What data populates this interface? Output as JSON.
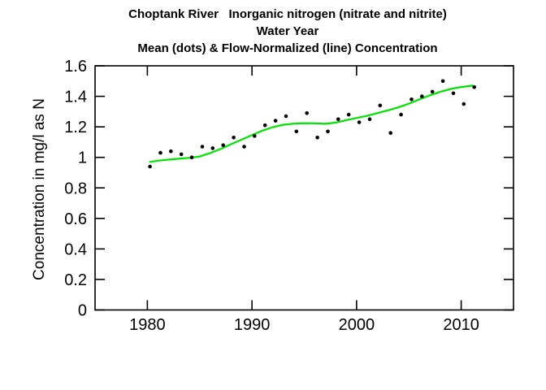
{
  "window": {
    "background": "#ffffff"
  },
  "chart_data": {
    "type": "scatter",
    "title_lines": [
      "Choptank River   Inorganic nitrogen (nitrate and nitrite)",
      "Water Year",
      "Mean (dots) & Flow-Normalized (line) Concentration"
    ],
    "xlabel": "",
    "ylabel": "Concentration in mg/l as N",
    "xlim": [
      1975,
      2015
    ],
    "ylim": [
      0,
      1.6
    ],
    "x_ticks": [
      1980,
      1990,
      2000,
      2010
    ],
    "x_tick_labels": [
      "1980",
      "1990",
      "2000",
      "2010"
    ],
    "y_ticks": [
      0,
      0.2,
      0.4,
      0.6,
      0.8,
      1,
      1.2,
      1.4,
      1.6
    ],
    "y_tick_labels": [
      "0",
      "0.2",
      "0.4",
      "0.6",
      "0.8",
      "1",
      "1.2",
      "1.4",
      "1.6"
    ],
    "grid": false,
    "legend": "none",
    "colors": {
      "dots": "#000000",
      "line": "#00e300",
      "frame": "#000000"
    },
    "series": [
      {
        "name": "Mean (dots)",
        "type": "scatter",
        "x_plot_offset": 0.25,
        "years": [
          1980,
          1981,
          1982,
          1983,
          1984,
          1985,
          1986,
          1987,
          1988,
          1989,
          1990,
          1991,
          1992,
          1993,
          1994,
          1995,
          1996,
          1997,
          1998,
          1999,
          2000,
          2001,
          2002,
          2003,
          2004,
          2005,
          2006,
          2007,
          2008,
          2009,
          2010,
          2011
        ],
        "values": [
          0.94,
          1.03,
          1.04,
          1.02,
          1.0,
          1.07,
          1.06,
          1.08,
          1.13,
          1.07,
          1.14,
          1.21,
          1.24,
          1.27,
          1.17,
          1.29,
          1.13,
          1.17,
          1.25,
          1.28,
          1.23,
          1.25,
          1.34,
          1.16,
          1.28,
          1.38,
          1.4,
          1.43,
          1.5,
          1.42,
          1.35,
          1.46
        ]
      },
      {
        "name": "Flow-Normalized (line)",
        "type": "line",
        "x": [
          1980.25,
          1981,
          1982,
          1983,
          1984,
          1985,
          1986,
          1987,
          1988,
          1989,
          1990,
          1991,
          1992,
          1993,
          1994,
          1995,
          1996,
          1997,
          1998,
          1999,
          2000,
          2001,
          2002,
          2003,
          2004,
          2005,
          2006,
          2007,
          2008,
          2009,
          2010,
          2011.1
        ],
        "values": [
          0.97,
          0.978,
          0.985,
          0.991,
          0.997,
          1.006,
          1.028,
          1.055,
          1.086,
          1.116,
          1.146,
          1.175,
          1.198,
          1.214,
          1.221,
          1.224,
          1.223,
          1.22,
          1.228,
          1.244,
          1.258,
          1.272,
          1.29,
          1.308,
          1.328,
          1.352,
          1.38,
          1.406,
          1.43,
          1.448,
          1.461,
          1.47
        ]
      }
    ]
  }
}
